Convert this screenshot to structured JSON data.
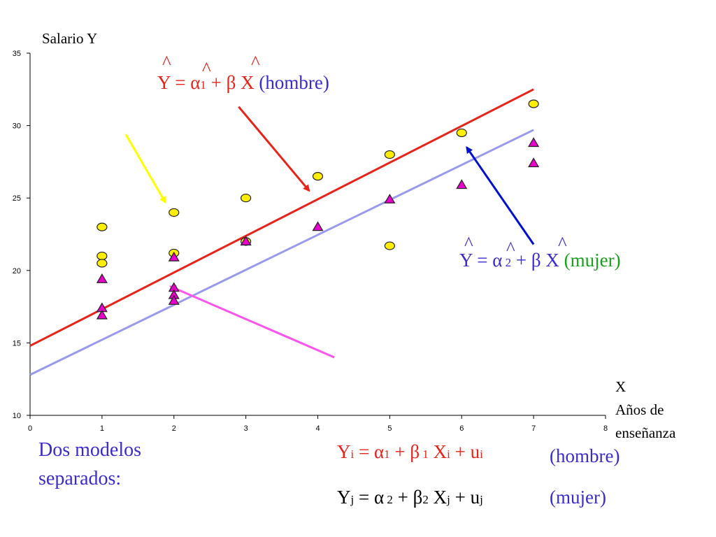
{
  "chart_data": {
    "type": "scatter",
    "title": "",
    "ylabel": "Salario Y",
    "xlabel": [
      "X",
      "Años de",
      "enseñanza"
    ],
    "xlim": [
      0,
      8
    ],
    "ylim": [
      10,
      35
    ],
    "x_ticks": [
      0,
      1,
      2,
      3,
      4,
      5,
      6,
      7,
      8
    ],
    "y_ticks": [
      10,
      15,
      20,
      25,
      30,
      35
    ],
    "grid": false,
    "series": [
      {
        "marker": "circle",
        "color": "#ffee00",
        "points": [
          [
            1,
            23
          ],
          [
            1,
            21
          ],
          [
            1,
            20.5
          ],
          [
            2,
            24
          ],
          [
            2,
            21.2
          ],
          [
            3,
            25
          ],
          [
            3,
            22
          ],
          [
            4,
            26.5
          ],
          [
            5,
            28
          ],
          [
            5,
            21.7
          ],
          [
            6,
            29.5
          ],
          [
            7,
            31.5
          ]
        ]
      },
      {
        "marker": "triangle",
        "color": "#e600c8",
        "points": [
          [
            1,
            19.4
          ],
          [
            1,
            17.4
          ],
          [
            1,
            16.9
          ],
          [
            2,
            20.9
          ],
          [
            2,
            18.8
          ],
          [
            2,
            18.3
          ],
          [
            2,
            17.9
          ],
          [
            3,
            22
          ],
          [
            4,
            23
          ],
          [
            5,
            24.9
          ],
          [
            6,
            25.9
          ],
          [
            7,
            28.8
          ],
          [
            7,
            27.4
          ]
        ]
      }
    ],
    "lines": [
      {
        "color": "#e8231a",
        "points": [
          [
            0,
            14.8
          ],
          [
            7,
            32.5
          ]
        ]
      },
      {
        "color": "#9999ee",
        "points": [
          [
            0,
            12.8
          ],
          [
            7,
            29.7
          ]
        ]
      }
    ],
    "arrows": [
      {
        "color": "#ffff00",
        "from": [
          1.33,
          29.4
        ],
        "to": [
          1.88,
          24.7
        ]
      },
      {
        "color": "#e8231a",
        "from": [
          2.9,
          31.3
        ],
        "to": [
          3.88,
          25.5
        ]
      },
      {
        "color": "#0010d0",
        "from": [
          7.0,
          21.8
        ],
        "to": [
          6.07,
          28.5
        ]
      },
      {
        "color": "#ff55ee",
        "from": [
          4.23,
          14
        ],
        "to": [
          1.95,
          18.9
        ]
      }
    ],
    "annotations": {
      "eq_hombre": {
        "yhat": "Y",
        "eq1": " = ",
        "alpha": "α",
        "sub": "1",
        "plus": " + ",
        "beta": "β",
        "x": " X ",
        "label": "(hombre)"
      },
      "eq_mujer": {
        "yhat": "Y",
        "eq1": " = ",
        "alpha": "α",
        "sub": " 2",
        "plus": " + ",
        "beta": "β",
        "x": " X ",
        "label": "(mujer)"
      }
    }
  },
  "caption": {
    "line1": "Dos modelos",
    "line2": "separados:"
  },
  "model_hombre": {
    "y": "Y",
    "y_sub": "i",
    "eq": " = ",
    "alpha": "α",
    "a_sub": "1",
    "plus": " + ",
    "beta": "β",
    "b_sub": " 1",
    "x": " X",
    "x_sub": "i",
    "plus2": " + u",
    "u_sub": "i",
    "label": "(hombre)"
  },
  "model_mujer": {
    "y": "Y",
    "y_sub": "j",
    "eq": " = ",
    "alpha": "α",
    "a_sub": " 2",
    "plus": " + ",
    "beta": "β",
    "b_sub": "2",
    "x": " X",
    "x_sub": "j",
    "plus2": " + u",
    "u_sub": "j",
    "label": "(mujer)"
  },
  "hat": "^",
  "colors": {
    "red": "#e8231a",
    "blue": "#3a2bd0",
    "green": "#17a21a",
    "black": "#000000"
  }
}
